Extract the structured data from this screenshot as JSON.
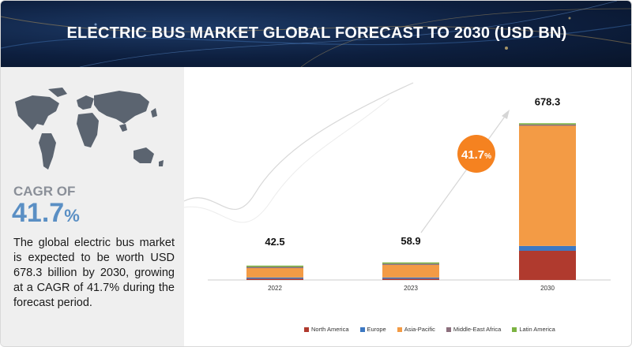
{
  "header": {
    "title": "ELECTRIC BUS MARKET GLOBAL FORECAST TO 2030 (USD BN)"
  },
  "side": {
    "cagr_label": "CAGR OF",
    "cagr_value": "41.7",
    "cagr_pct": "%",
    "description": "The global electric bus market is expected to be worth USD 678.3 billion by 2030, growing at a CAGR of 41.7% during the forecast period."
  },
  "badge": {
    "value": "41.7",
    "pct": "%"
  },
  "colors": {
    "North America": "#b03a2e",
    "Europe": "#3d78c2",
    "Asia-Pacific": "#f39b45",
    "Middle-East Africa": "#8c6f7d",
    "Latin America": "#7cb342",
    "badge": "#f58220"
  },
  "chart_data": {
    "type": "bar",
    "stacked": true,
    "categories": [
      "2022",
      "2023",
      "2030"
    ],
    "totals": [
      42.5,
      58.9,
      678.3
    ],
    "total_labels": [
      "42.5",
      "58.9",
      "678.3"
    ],
    "series": [
      {
        "name": "North America",
        "values": [
          0.4,
          0.6,
          127
        ]
      },
      {
        "name": "Europe",
        "values": [
          0.6,
          0.9,
          21
        ]
      },
      {
        "name": "Asia-Pacific",
        "values": [
          40.5,
          54.4,
          523
        ]
      },
      {
        "name": "Middle-East Africa",
        "values": [
          0.3,
          1.6,
          2.3
        ]
      },
      {
        "name": "Latin America",
        "values": [
          0.7,
          1.4,
          5
        ]
      }
    ],
    "title": "ELECTRIC BUS MARKET GLOBAL FORECAST TO 2030 (USD BN)",
    "xlabel": "",
    "ylabel": "",
    "ylim": [
      0,
      700
    ],
    "cagr": "41.7%",
    "legend_position": "bottom"
  }
}
